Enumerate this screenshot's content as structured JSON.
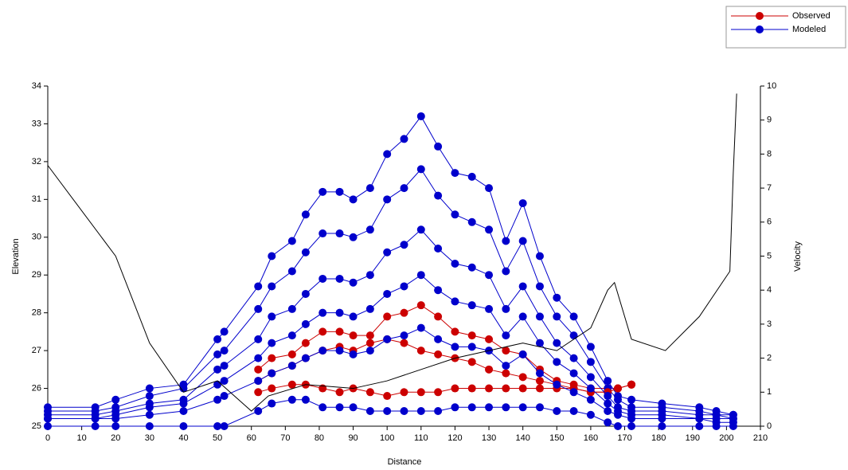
{
  "chart_data": {
    "type": "line",
    "x_label": "Distance",
    "y_label": "Elevation",
    "y2_label": "Velocity",
    "x": [
      0,
      14,
      20,
      30,
      40,
      50,
      52,
      62,
      66,
      72,
      76,
      81,
      86,
      90,
      95,
      100,
      105,
      110,
      115,
      120,
      125,
      130,
      135,
      140,
      145,
      150,
      155,
      160,
      165,
      168,
      172,
      181,
      192,
      197,
      202
    ],
    "xlim": [
      0,
      210
    ],
    "xticks": [
      0,
      10,
      20,
      30,
      40,
      50,
      60,
      70,
      80,
      90,
      100,
      110,
      120,
      130,
      140,
      150,
      160,
      170,
      180,
      190,
      200,
      210
    ],
    "ylim": [
      25,
      34
    ],
    "yticks": [
      25,
      26,
      27,
      28,
      29,
      30,
      31,
      32,
      33,
      34
    ],
    "y2lim": [
      0,
      10
    ],
    "y2ticks": [
      0,
      1,
      2,
      3,
      4,
      5,
      6,
      7,
      8,
      9,
      10
    ],
    "grid": false,
    "legend": "top-right",
    "series": [
      {
        "name": "Observed",
        "color": "#cc0000",
        "values": [
          null,
          null,
          null,
          null,
          null,
          null,
          null,
          26.5,
          26.8,
          26.9,
          27.2,
          27.5,
          27.5,
          27.4,
          27.4,
          27.9,
          28.0,
          28.2,
          27.9,
          27.5,
          27.4,
          27.3,
          27.0,
          26.9,
          26.5,
          26.2,
          26.1,
          26.0,
          26.0,
          26.0,
          26.1,
          null,
          null,
          null,
          null
        ]
      },
      {
        "name": "Modeled",
        "color": "#0000cc",
        "values": [
          25.5,
          25.5,
          25.7,
          26.0,
          26.1,
          27.3,
          27.5,
          28.7,
          29.5,
          29.9,
          30.6,
          31.2,
          31.2,
          31.0,
          31.3,
          32.2,
          32.6,
          33.2,
          32.4,
          31.7,
          31.6,
          31.3,
          29.9,
          30.9,
          29.5,
          28.4,
          27.9,
          27.1,
          26.2,
          25.8,
          25.7,
          25.6,
          25.5,
          25.4,
          25.3
        ]
      },
      {
        "name": "Observed",
        "color": "#cc0000",
        "values": [
          null,
          null,
          null,
          null,
          null,
          null,
          null,
          26.2,
          26.4,
          26.6,
          26.8,
          27.0,
          27.1,
          27.0,
          27.2,
          27.3,
          27.2,
          27.0,
          26.9,
          26.8,
          26.7,
          26.5,
          26.4,
          26.3,
          26.2,
          26.1,
          26.0,
          25.9,
          25.9,
          26.0,
          26.1,
          null,
          null,
          null,
          null
        ]
      },
      {
        "name": "Modeled",
        "color": "#0000cc",
        "values": [
          25.4,
          25.4,
          25.5,
          25.8,
          26.0,
          26.9,
          27.0,
          28.1,
          28.7,
          29.1,
          29.6,
          30.1,
          30.1,
          30.0,
          30.2,
          31.0,
          31.3,
          31.8,
          31.1,
          30.6,
          30.4,
          30.2,
          29.1,
          29.9,
          28.7,
          27.9,
          27.4,
          26.7,
          26.0,
          25.7,
          25.5,
          25.5,
          25.4,
          25.3,
          25.3
        ]
      },
      {
        "name": "Observed",
        "color": "#cc0000",
        "values": [
          null,
          null,
          null,
          null,
          null,
          null,
          null,
          25.9,
          26.0,
          26.1,
          26.1,
          26.0,
          25.9,
          26.0,
          25.9,
          25.8,
          25.9,
          25.9,
          25.9,
          26.0,
          26.0,
          26.0,
          26.0,
          26.0,
          26.0,
          26.0,
          26.0,
          25.9,
          25.9,
          26.0,
          26.1,
          null,
          null,
          null,
          null
        ]
      },
      {
        "name": "Modeled",
        "color": "#0000cc",
        "values": [
          25.3,
          25.3,
          25.4,
          25.6,
          25.7,
          26.5,
          26.6,
          27.3,
          27.9,
          28.1,
          28.5,
          28.9,
          28.9,
          28.8,
          29.0,
          29.6,
          29.8,
          30.2,
          29.7,
          29.3,
          29.2,
          29.0,
          28.1,
          28.7,
          27.9,
          27.2,
          26.8,
          26.3,
          25.8,
          25.5,
          25.4,
          25.4,
          25.3,
          25.3,
          25.2
        ]
      },
      {
        "name": "Modeled",
        "color": "#0000cc",
        "values": [
          25.2,
          25.2,
          25.3,
          25.5,
          25.6,
          26.1,
          26.2,
          26.8,
          27.2,
          27.4,
          27.7,
          28.0,
          28.0,
          27.9,
          28.1,
          28.5,
          28.7,
          29.0,
          28.6,
          28.3,
          28.2,
          28.1,
          27.4,
          27.9,
          27.2,
          26.7,
          26.4,
          26.0,
          25.6,
          25.4,
          25.3,
          25.3,
          25.2,
          25.2,
          25.2
        ]
      },
      {
        "name": "Modeled",
        "color": "#0000cc",
        "values": [
          25.2,
          25.2,
          25.2,
          25.3,
          25.4,
          25.7,
          25.8,
          26.2,
          26.4,
          26.6,
          26.8,
          27.0,
          27.0,
          26.9,
          27.0,
          27.3,
          27.4,
          27.6,
          27.3,
          27.1,
          27.1,
          27.0,
          26.6,
          26.9,
          26.4,
          26.1,
          25.9,
          25.7,
          25.4,
          25.3,
          25.2,
          25.2,
          25.2,
          25.1,
          25.1
        ]
      },
      {
        "name": "Modeled",
        "color": "#0000cc",
        "values": [
          25.0,
          25.0,
          25.0,
          25.0,
          25.0,
          25.0,
          25.0,
          25.4,
          25.6,
          25.7,
          25.7,
          25.5,
          25.5,
          25.5,
          25.4,
          25.4,
          25.4,
          25.4,
          25.4,
          25.5,
          25.5,
          25.5,
          25.5,
          25.5,
          25.5,
          25.4,
          25.4,
          25.3,
          25.1,
          25.0,
          25.0,
          25.0,
          25.0,
          25.0,
          25.0
        ]
      },
      {
        "color": "#000000",
        "markers": false,
        "x": [
          0,
          20,
          30,
          40,
          50,
          60,
          65,
          76,
          90,
          100,
          110,
          120,
          130,
          140,
          150,
          160,
          165,
          167,
          172,
          182,
          192,
          201,
          202,
          203
        ],
        "values": [
          31.9,
          29.5,
          27.2,
          25.9,
          26.2,
          25.4,
          25.8,
          26.1,
          26.0,
          26.2,
          26.5,
          26.8,
          27.0,
          27.2,
          27.0,
          27.6,
          28.6,
          28.8,
          27.3,
          27.0,
          27.9,
          29.1,
          31.7,
          33.8
        ]
      }
    ]
  }
}
